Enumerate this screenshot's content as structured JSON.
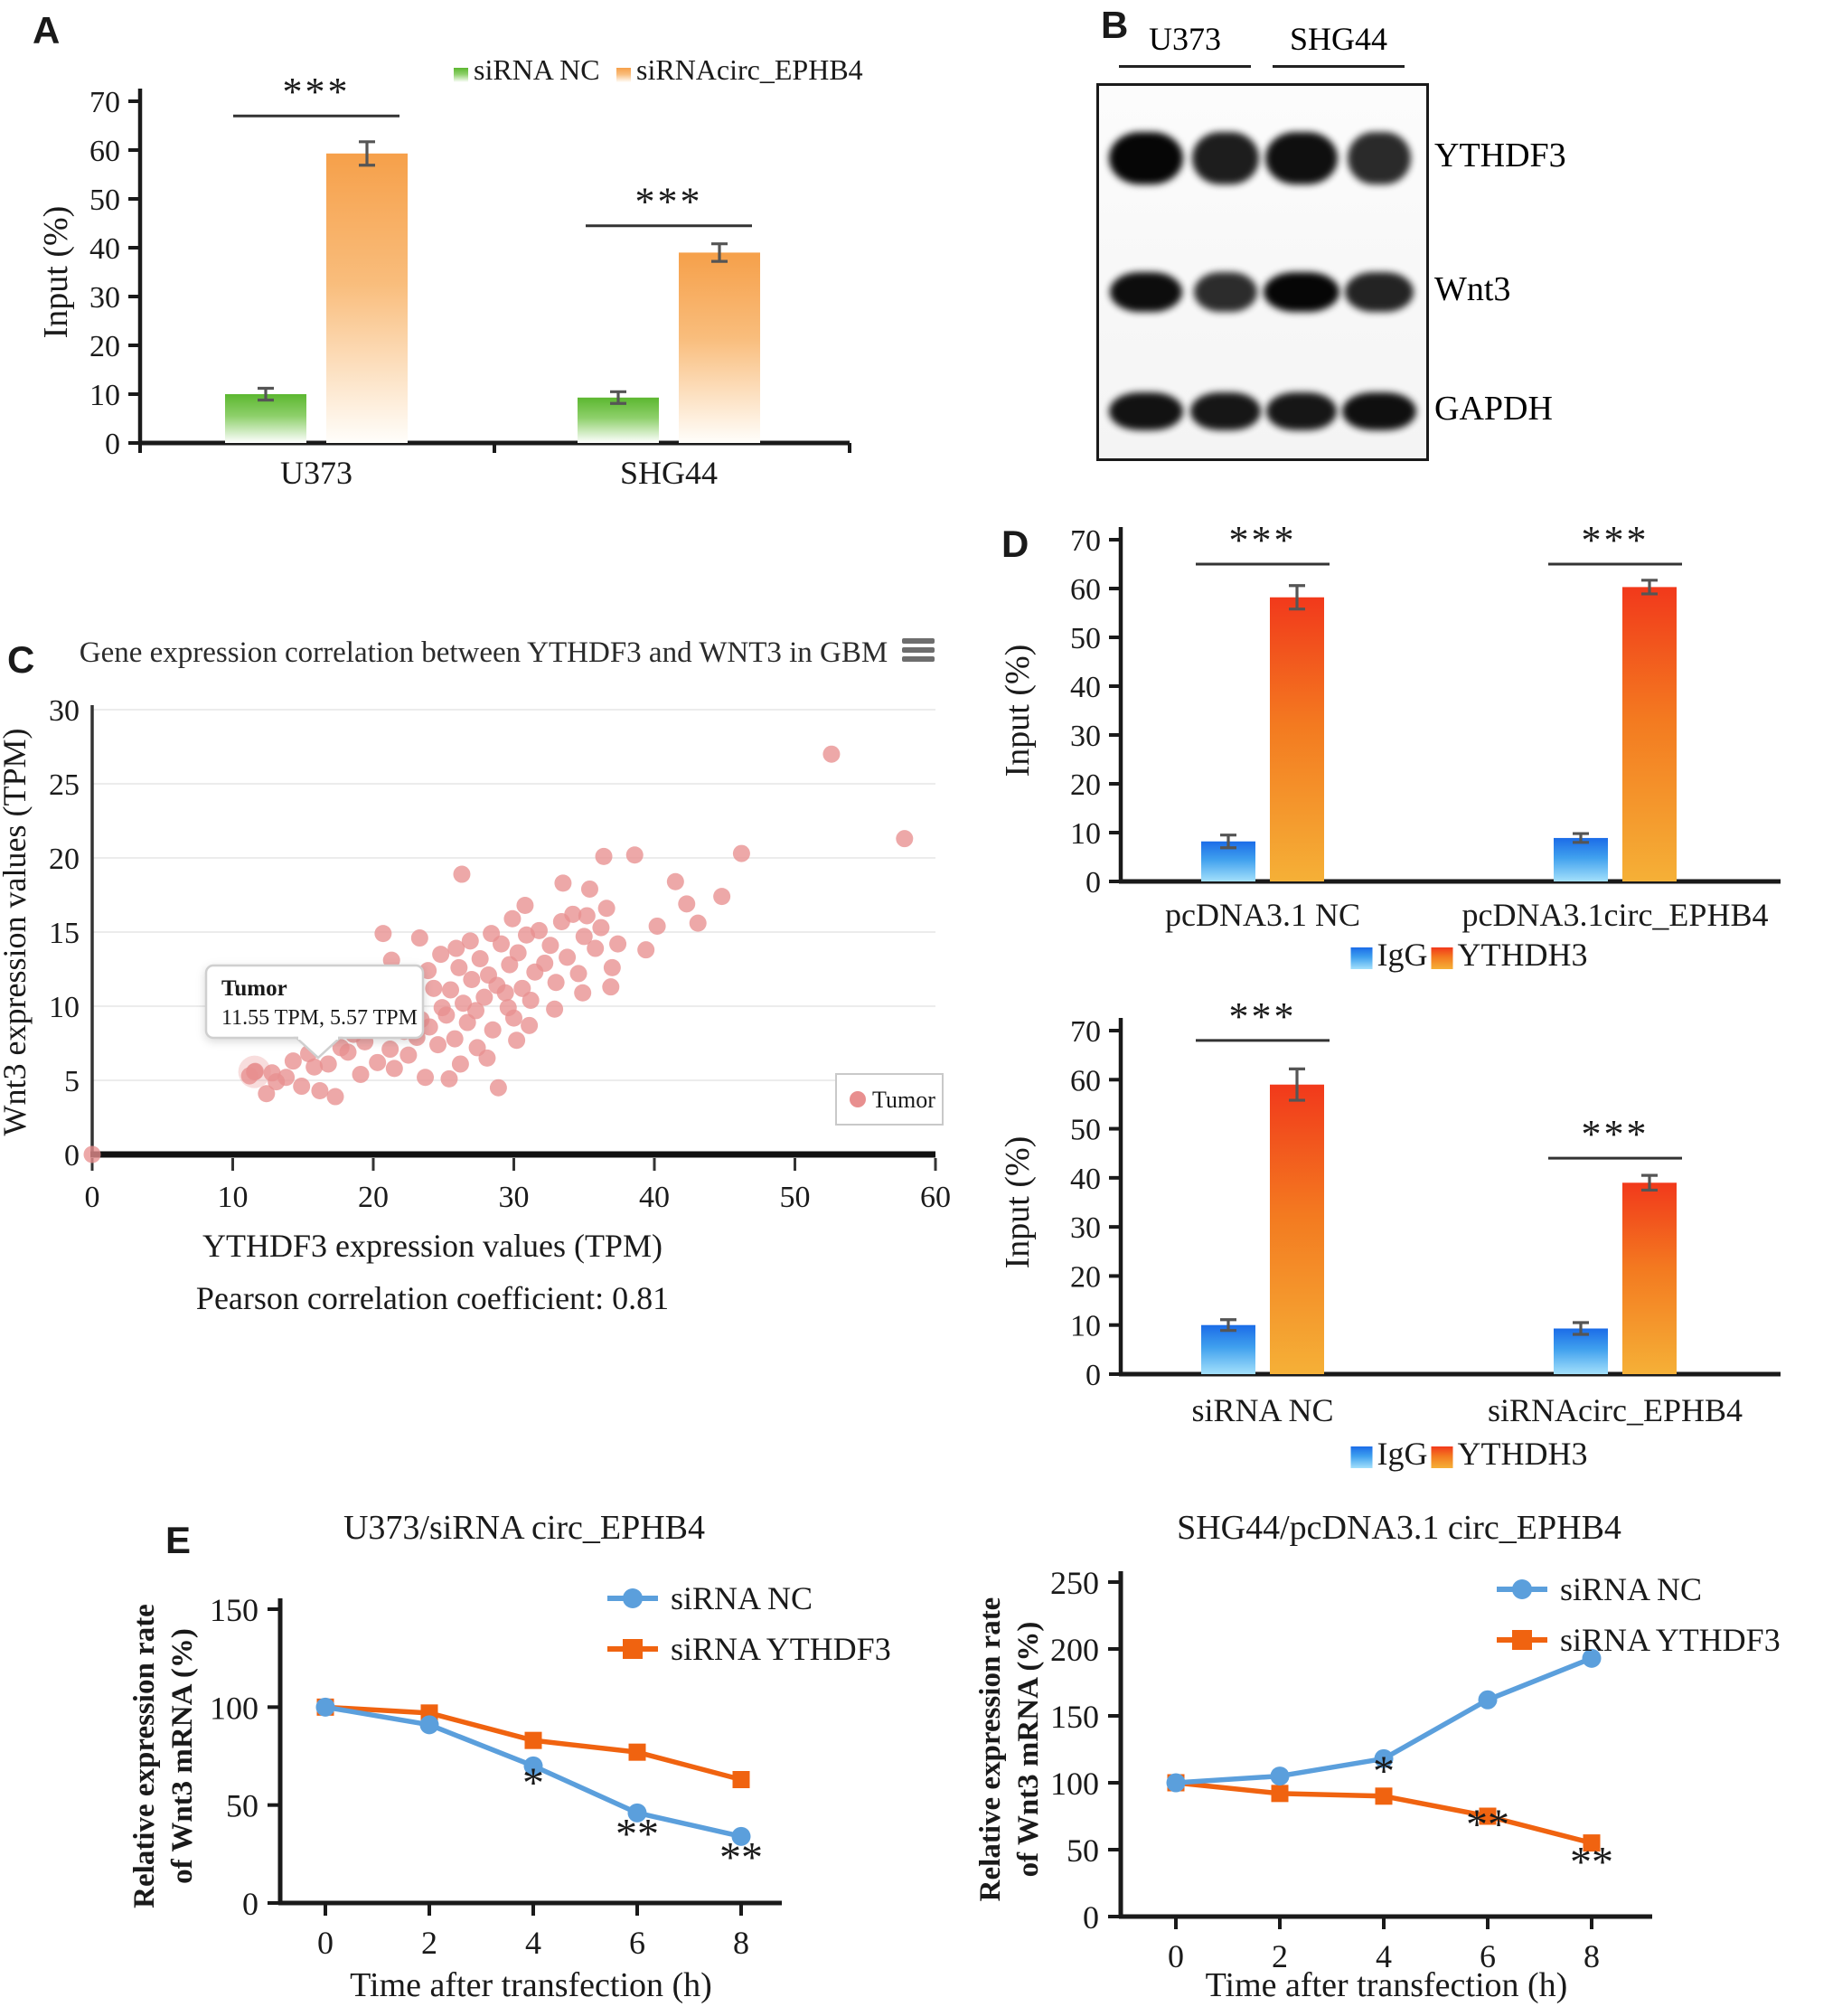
{
  "panel_labels": {
    "A": "A",
    "B": "B",
    "C": "C",
    "D": "D",
    "E": "E"
  },
  "blot": {
    "group_headers": [
      "U373",
      "SHG44"
    ],
    "rows": [
      {
        "label": "YTHDF3",
        "band_height": 58,
        "intensities": [
          1.0,
          0.8,
          0.92,
          0.7
        ],
        "band_widths": [
          82,
          74,
          80,
          70
        ]
      },
      {
        "label": "Wnt3",
        "band_height": 44,
        "intensities": [
          0.95,
          0.68,
          1.0,
          0.75
        ],
        "band_widths": [
          80,
          70,
          84,
          76
        ]
      },
      {
        "label": "GAPDH",
        "band_height": 42,
        "intensities": [
          0.9,
          0.85,
          0.85,
          0.92
        ],
        "band_widths": [
          82,
          78,
          78,
          82
        ]
      }
    ]
  },
  "chart_data": [
    {
      "id": "panel-a-bar",
      "type": "bar",
      "ylabel": "Input (%)",
      "ylim": [
        0,
        70
      ],
      "yticks": [
        0,
        10,
        20,
        30,
        40,
        50,
        60,
        70
      ],
      "categories": [
        "U373",
        "SHG44"
      ],
      "series": [
        {
          "name": "siRNA NC",
          "values": [
            10,
            9.3
          ],
          "errors": [
            1.2,
            1.2
          ],
          "colors": [
            "#5cb730",
            "#8ed06b",
            "#ffffff"
          ]
        },
        {
          "name": "siRNAcirc_EPHB4",
          "values": [
            59.3,
            39
          ],
          "errors": [
            2.4,
            1.8
          ],
          "colors": [
            "#f6a04a",
            "#f9bd7c",
            "#fffefb"
          ]
        }
      ],
      "significance": [
        {
          "group": 0,
          "label": "***",
          "level": 67
        },
        {
          "group": 1,
          "label": "***",
          "level": 44.5
        }
      ],
      "legend": [
        "siRNA NC",
        "siRNAcirc_EPHB4"
      ]
    },
    {
      "id": "panel-c-scatter",
      "type": "scatter",
      "title": "Gene expression correlation between YTHDF3 and WNT3 in GBM",
      "xlabel": "YTHDF3 expression values (TPM)",
      "caption": "Pearson correlation coefficient: 0.81",
      "ylabel": "Wnt3 expression values (TPM)",
      "xlim": [
        0,
        60
      ],
      "ylim": [
        0,
        30
      ],
      "xticks": [
        0,
        10,
        20,
        30,
        40,
        50,
        60
      ],
      "yticks": [
        0,
        5,
        10,
        15,
        20,
        25,
        30
      ],
      "point_color": "#e88f8f",
      "legend": [
        {
          "label": "Tumor",
          "color": "#e88f8f"
        }
      ],
      "tooltip": {
        "title": "Tumor",
        "value": "11.55 TPM, 5.57 TPM",
        "anchor_point": [
          11.55,
          5.57
        ]
      },
      "points": [
        [
          0,
          0
        ],
        [
          11.55,
          5.57
        ],
        [
          11.2,
          5.3
        ],
        [
          11.6,
          5.6
        ],
        [
          12.4,
          4.1
        ],
        [
          13.1,
          4.9
        ],
        [
          13.8,
          5.2
        ],
        [
          14.3,
          6.3
        ],
        [
          14.9,
          4.6
        ],
        [
          15.4,
          6.8
        ],
        [
          15.8,
          5.9
        ],
        [
          16.2,
          4.3
        ],
        [
          16.8,
          6.1
        ],
        [
          17.3,
          3.9
        ],
        [
          17.7,
          7.2
        ],
        [
          12.8,
          5.5
        ],
        [
          18.2,
          6.9
        ],
        [
          18.6,
          8.1
        ],
        [
          19.1,
          5.4
        ],
        [
          19.4,
          7.6
        ],
        [
          19.9,
          9.2
        ],
        [
          20.3,
          6.2
        ],
        [
          20.6,
          8.8
        ],
        [
          20.9,
          10.4
        ],
        [
          21.2,
          7.1
        ],
        [
          21.5,
          5.8
        ],
        [
          21.9,
          9.6
        ],
        [
          22.2,
          8.3
        ],
        [
          22.5,
          6.7
        ],
        [
          22.8,
          10.9
        ],
        [
          23.1,
          7.9
        ],
        [
          23.4,
          9.1
        ],
        [
          23.7,
          5.2
        ],
        [
          24.0,
          8.6
        ],
        [
          24.3,
          11.2
        ],
        [
          24.6,
          7.4
        ],
        [
          24.9,
          9.9
        ],
        [
          20.1,
          12.1
        ],
        [
          21.7,
          11.6
        ],
        [
          23.9,
          12.4
        ],
        [
          19.6,
          10.8
        ],
        [
          22.7,
          11.9
        ],
        [
          18.9,
          9.8
        ],
        [
          24.8,
          13.5
        ],
        [
          21.3,
          13.1
        ],
        [
          23.3,
          14.6
        ],
        [
          20.7,
          14.9
        ],
        [
          25.2,
          9.4
        ],
        [
          25.5,
          11.1
        ],
        [
          25.8,
          7.8
        ],
        [
          26.1,
          12.6
        ],
        [
          26.4,
          10.2
        ],
        [
          26.7,
          8.9
        ],
        [
          27.0,
          11.8
        ],
        [
          27.3,
          9.7
        ],
        [
          27.6,
          13.2
        ],
        [
          27.9,
          10.6
        ],
        [
          28.2,
          12.1
        ],
        [
          28.5,
          8.4
        ],
        [
          28.8,
          11.4
        ],
        [
          29.1,
          14.2
        ],
        [
          29.4,
          10.9
        ],
        [
          29.7,
          12.8
        ],
        [
          30.0,
          9.2
        ],
        [
          30.3,
          13.6
        ],
        [
          30.6,
          11.2
        ],
        [
          30.9,
          14.8
        ],
        [
          31.2,
          10.4
        ],
        [
          31.5,
          12.3
        ],
        [
          31.8,
          15.1
        ],
        [
          26.9,
          14.4
        ],
        [
          28.4,
          14.9
        ],
        [
          25.9,
          13.9
        ],
        [
          30.8,
          16.8
        ],
        [
          29.9,
          15.9
        ],
        [
          27.4,
          7.2
        ],
        [
          28.1,
          6.5
        ],
        [
          26.2,
          6.1
        ],
        [
          25.4,
          5.1
        ],
        [
          28.9,
          4.5
        ],
        [
          29.6,
          9.9
        ],
        [
          31.1,
          8.7
        ],
        [
          30.2,
          7.7
        ],
        [
          26.3,
          18.9
        ],
        [
          32.2,
          12.9
        ],
        [
          32.6,
          14.1
        ],
        [
          33.0,
          11.6
        ],
        [
          33.4,
          15.7
        ],
        [
          33.8,
          13.3
        ],
        [
          34.2,
          16.2
        ],
        [
          34.6,
          12.2
        ],
        [
          35.0,
          14.7
        ],
        [
          35.4,
          17.9
        ],
        [
          35.8,
          13.9
        ],
        [
          36.2,
          15.3
        ],
        [
          36.6,
          16.6
        ],
        [
          37.0,
          12.6
        ],
        [
          37.4,
          14.2
        ],
        [
          33.5,
          18.3
        ],
        [
          36.4,
          20.1
        ],
        [
          32.9,
          9.8
        ],
        [
          34.9,
          10.9
        ],
        [
          36.9,
          11.3
        ],
        [
          35.2,
          16.1
        ],
        [
          38.6,
          20.2
        ],
        [
          40.2,
          15.4
        ],
        [
          41.5,
          18.4
        ],
        [
          43.1,
          15.6
        ],
        [
          44.8,
          17.4
        ],
        [
          46.2,
          20.3
        ],
        [
          52.6,
          27.0
        ],
        [
          57.8,
          21.3
        ],
        [
          39.4,
          13.8
        ],
        [
          42.3,
          16.9
        ]
      ]
    },
    {
      "id": "panel-d-top",
      "type": "bar",
      "ylabel": "Input (%)",
      "ylim": [
        0,
        70
      ],
      "yticks": [
        0,
        10,
        20,
        30,
        40,
        50,
        60,
        70
      ],
      "categories": [
        "pcDNA3.1 NC",
        "pcDNA3.1circ_EPHB4"
      ],
      "series": [
        {
          "name": "IgG",
          "values": [
            8.2,
            8.9
          ],
          "errors": [
            1.3,
            0.9
          ],
          "colors": [
            "#1b6ce8",
            "#3fa0ee",
            "#a3e0fb"
          ]
        },
        {
          "name": "YTHDH3",
          "values": [
            58.2,
            60.3
          ],
          "errors": [
            2.4,
            1.4
          ],
          "colors": [
            "#f2391b",
            "#f37a20",
            "#f5b037"
          ]
        }
      ],
      "significance": [
        {
          "group": 0,
          "label": "***",
          "level": 65
        },
        {
          "group": 1,
          "label": "***",
          "level": 65
        }
      ],
      "legend": [
        "IgG",
        "YTHDH3"
      ]
    },
    {
      "id": "panel-d-bottom",
      "type": "bar",
      "ylabel": "Input (%)",
      "ylim": [
        0,
        70
      ],
      "yticks": [
        0,
        10,
        20,
        30,
        40,
        50,
        60,
        70
      ],
      "categories": [
        "siRNA NC",
        "siRNAcirc_EPHB4"
      ],
      "series": [
        {
          "name": "IgG",
          "values": [
            10,
            9.3
          ],
          "errors": [
            1.1,
            1.2
          ],
          "colors": [
            "#1b6ce8",
            "#3fa0ee",
            "#a3e0fb"
          ]
        },
        {
          "name": "YTHDH3",
          "values": [
            59,
            39
          ],
          "errors": [
            3.2,
            1.5
          ],
          "colors": [
            "#f2391b",
            "#f37a20",
            "#f5b037"
          ]
        }
      ],
      "significance": [
        {
          "group": 0,
          "label": "***",
          "level": 68
        },
        {
          "group": 1,
          "label": "***",
          "level": 44
        }
      ],
      "legend": [
        "IgG",
        "YTHDH3"
      ]
    },
    {
      "id": "panel-e-left",
      "type": "line",
      "title": "U373/siRNA circ_EPHB4",
      "ylabel_lines": [
        "Relative expression rate",
        "of Wnt3 mRNA (%)"
      ],
      "xlabel": "Time after transfection (h)",
      "x": [
        0,
        2,
        4,
        6,
        8
      ],
      "ylim": [
        0,
        150
      ],
      "yticks": [
        0,
        50,
        100,
        150
      ],
      "series": [
        {
          "name": "siRNA NC",
          "marker": "circle",
          "color": "#5b9fdc",
          "values": [
            100,
            91,
            70,
            46,
            34
          ]
        },
        {
          "name": "siRNA YTHDF3",
          "marker": "square",
          "color": "#f06310",
          "values": [
            100,
            97,
            83,
            77,
            63
          ]
        }
      ],
      "annotations": [
        {
          "x": 4,
          "y": 54,
          "label": "*"
        },
        {
          "x": 6,
          "y": 28,
          "label": "**"
        },
        {
          "x": 8,
          "y": 16,
          "label": "**"
        }
      ]
    },
    {
      "id": "panel-e-right",
      "type": "line",
      "title": "SHG44/pcDNA3.1 circ_EPHB4",
      "ylabel_lines": [
        "Relative expression rate",
        "of Wnt3 mRNA (%)"
      ],
      "xlabel": "Time after transfection (h)",
      "x": [
        0,
        2,
        4,
        6,
        8
      ],
      "ylim": [
        0,
        250
      ],
      "yticks": [
        0,
        50,
        100,
        150,
        200,
        250
      ],
      "series": [
        {
          "name": "siRNA NC",
          "marker": "circle",
          "color": "#5b9fdc",
          "values": [
            100,
            105,
            118,
            162,
            193
          ]
        },
        {
          "name": "siRNA YTHDF3",
          "marker": "square",
          "color": "#f06310",
          "values": [
            100,
            92,
            90,
            75,
            55
          ]
        }
      ],
      "annotations": [
        {
          "x": 4,
          "y": 98,
          "label": "*"
        },
        {
          "x": 6,
          "y": 58,
          "label": "**"
        },
        {
          "x": 8,
          "y": 30,
          "label": "**"
        }
      ]
    }
  ]
}
